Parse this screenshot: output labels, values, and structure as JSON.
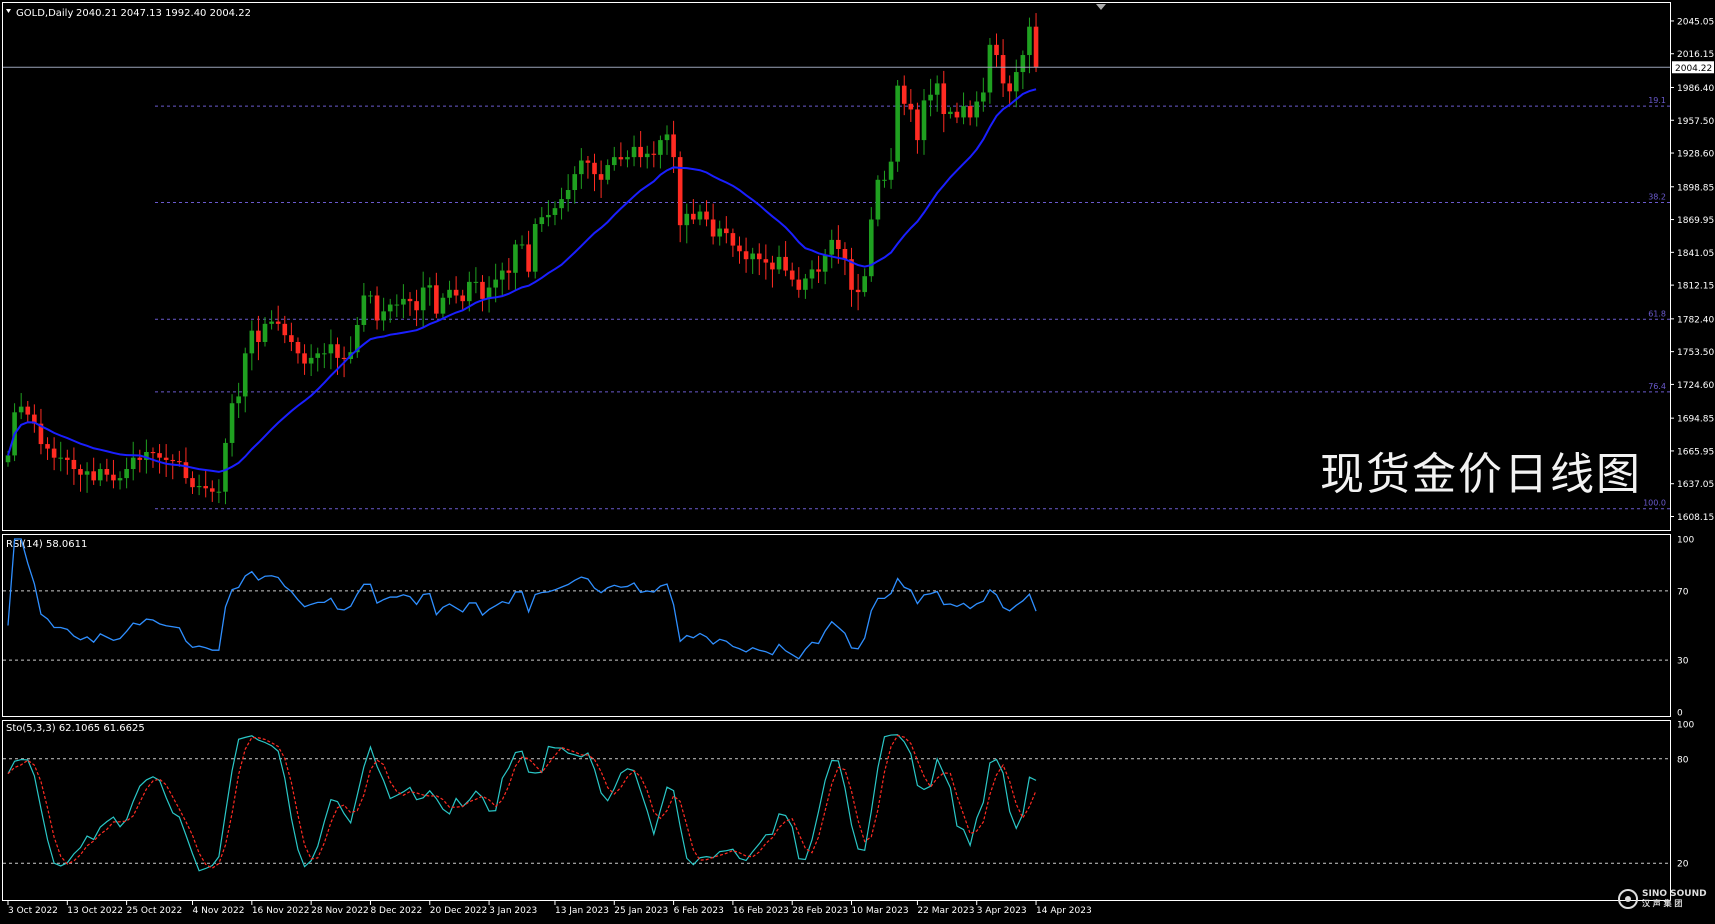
{
  "symbol_header": {
    "name": "GOLD,Daily",
    "ohlc": "2040.21 2047.13 1992.40 2004.22"
  },
  "overlay_title": "现货金价日线图",
  "watermark": {
    "brand": "SINO SOUND",
    "sub": "汉 声 集 团"
  },
  "colors": {
    "background": "#000000",
    "grid": "#ffffff",
    "bull": "#1fa020",
    "bear": "#ff2b22",
    "ma": "#1a1fff",
    "fib": "#6a5acd",
    "rsi": "#2f8fff",
    "stoch_main": "#2ac7c7",
    "stoch_signal": "#ff2b22",
    "axis_text": "#ffffff",
    "current_price_line": "#9aa3b8"
  },
  "chart_data": [
    {
      "type": "candlestick",
      "title": "GOLD,Daily",
      "ylim": [
        1598,
        2060
      ],
      "y_ticks": [
        "2045.05",
        "2016.15",
        "1986.40",
        "1957.50",
        "1928.60",
        "1898.85",
        "1869.95",
        "1841.05",
        "1812.15",
        "1782.40",
        "1753.50",
        "1724.60",
        "1694.85",
        "1665.95",
        "1637.05",
        "1608.15"
      ],
      "current_price": "2004.22",
      "x_tick_labels": [
        "3 Oct 2022",
        "13 Oct 2022",
        "25 Oct 2022",
        "4 Nov 2022",
        "16 Nov 2022",
        "28 Nov 2022",
        "8 Dec 2022",
        "20 Dec 2022",
        "3 Jan 2023",
        "13 Jan 2023",
        "25 Jan 2023",
        "6 Feb 2023",
        "16 Feb 2023",
        "28 Feb 2023",
        "10 Mar 2023",
        "22 Mar 2023",
        "3 Apr 2023",
        "14 Apr 2023"
      ],
      "fib_levels": [
        {
          "label": "19.1",
          "price": 1970
        },
        {
          "label": "38.2",
          "price": 1885
        },
        {
          "label": "61.8",
          "price": 1782
        },
        {
          "label": "76.4",
          "price": 1718
        },
        {
          "label": "100.0",
          "price": 1615
        }
      ],
      "close": [
        1662,
        1700,
        1705,
        1698,
        1690,
        1672,
        1668,
        1660,
        1660,
        1658,
        1650,
        1645,
        1648,
        1640,
        1650,
        1645,
        1640,
        1642,
        1650,
        1660,
        1658,
        1665,
        1664,
        1660,
        1658,
        1657,
        1656,
        1642,
        1634,
        1635,
        1633,
        1630,
        1630,
        1673,
        1708,
        1714,
        1752,
        1772,
        1762,
        1778,
        1780,
        1778,
        1768,
        1762,
        1752,
        1743,
        1748,
        1752,
        1752,
        1760,
        1748,
        1747,
        1753,
        1777,
        1803,
        1803,
        1781,
        1789,
        1795,
        1795,
        1800,
        1798,
        1790,
        1810,
        1812,
        1787,
        1801,
        1808,
        1803,
        1798,
        1815,
        1815,
        1800,
        1810,
        1817,
        1825,
        1823,
        1848,
        1848,
        1824,
        1866,
        1872,
        1874,
        1880,
        1888,
        1896,
        1910,
        1922,
        1920,
        1910,
        1905,
        1918,
        1925,
        1923,
        1925,
        1934,
        1925,
        1928,
        1927,
        1940,
        1945,
        1925,
        1865,
        1875,
        1870,
        1877,
        1870,
        1855,
        1862,
        1858,
        1847,
        1842,
        1835,
        1840,
        1835,
        1832,
        1826,
        1837,
        1825,
        1817,
        1808,
        1818,
        1826,
        1824,
        1839,
        1852,
        1844,
        1835,
        1808,
        1806,
        1820,
        1870,
        1905,
        1905,
        1921,
        1988,
        1972,
        1967,
        1940,
        1975,
        1980,
        1990,
        1963,
        1965,
        1960,
        1970,
        1960,
        1974,
        1982,
        2024,
        2015,
        1990,
        1983,
        2000,
        2015,
        2040,
        2004
      ],
      "ma_period": 20
    },
    {
      "type": "line",
      "title": "RSI(14) 58.0611",
      "ylim": [
        0,
        100
      ],
      "y_ticks": [
        "100",
        "70",
        "30",
        "0"
      ],
      "levels": [
        70,
        30
      ],
      "source": "close",
      "period": 14
    },
    {
      "type": "line",
      "title": "Sto(5,3,3) 62.1065 61.6625",
      "ylim": [
        0,
        100
      ],
      "y_ticks": [
        "100",
        "80",
        "20"
      ],
      "levels": [
        80,
        20
      ],
      "params": [
        5,
        3,
        3
      ]
    }
  ]
}
